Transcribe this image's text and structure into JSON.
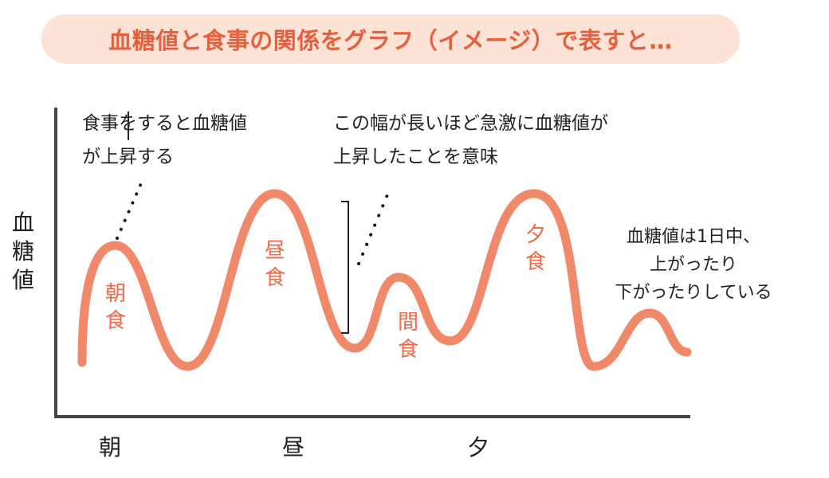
{
  "title": "血糖値と食事の関係をグラフ（イメージ）で表すと…",
  "y_axis_label": "血糖値",
  "x_axis_labels": [
    "朝",
    "昼",
    "夕"
  ],
  "meals": [
    "朝食",
    "昼食",
    "間食",
    "夕食"
  ],
  "annotations": {
    "rise": [
      "食事をすると血糖値",
      "が上昇する"
    ],
    "width": [
      "この幅が長いほど急激に血糖値が",
      "上昇したことを意味"
    ],
    "daily": [
      "血糖値は1日中、",
      "上がったり",
      "下がったりしている"
    ]
  },
  "colors": {
    "curve": "#f0896a",
    "title_bg": "#fde2d6",
    "title_text": "#e5603d",
    "meal_label": "#ea6a4a",
    "axis": "#444444"
  }
}
